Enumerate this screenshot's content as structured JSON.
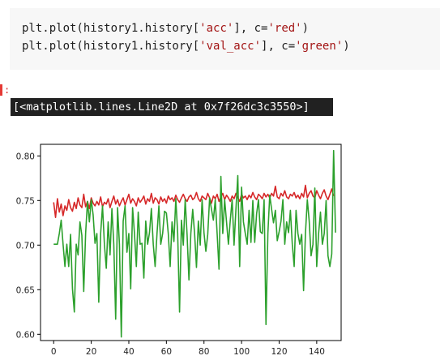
{
  "code": {
    "line1": {
      "prefix": "plt.plot(history1.history[",
      "key": "'acc'",
      "mid": "], c=",
      "color": "'red'",
      "suffix": ")"
    },
    "line2": {
      "prefix": "plt.plot(history1.history[",
      "key": "'val_acc'",
      "mid": "], c=",
      "color": "'green'",
      "suffix": ")"
    }
  },
  "prompt_mark": ":",
  "output_text": "[<matplotlib.lines.Line2D at 0x7f26dc3c3550>]",
  "chart_data": {
    "type": "line",
    "xlim": [
      -7,
      153
    ],
    "ylim": [
      0.593,
      0.813
    ],
    "x_ticks": [
      0,
      20,
      40,
      60,
      80,
      100,
      120,
      140
    ],
    "y_ticks": [
      0.6,
      0.65,
      0.7,
      0.75,
      0.8
    ],
    "x_tick_labels": [
      "0",
      "20",
      "40",
      "60",
      "80",
      "100",
      "120",
      "140"
    ],
    "y_tick_labels": [
      "0.60",
      "0.65",
      "0.70",
      "0.75",
      "0.80"
    ],
    "grid": false,
    "series": [
      {
        "key": "acc",
        "color": "#d62728",
        "values": [
          0.748,
          0.731,
          0.752,
          0.737,
          0.746,
          0.733,
          0.744,
          0.739,
          0.751,
          0.742,
          0.738,
          0.748,
          0.741,
          0.753,
          0.745,
          0.742,
          0.757,
          0.743,
          0.749,
          0.741,
          0.753,
          0.747,
          0.744,
          0.749,
          0.745,
          0.754,
          0.743,
          0.748,
          0.746,
          0.752,
          0.742,
          0.749,
          0.755,
          0.746,
          0.751,
          0.744,
          0.749,
          0.753,
          0.745,
          0.751,
          0.757,
          0.747,
          0.752,
          0.749,
          0.744,
          0.753,
          0.748,
          0.751,
          0.755,
          0.746,
          0.752,
          0.749,
          0.758,
          0.747,
          0.753,
          0.751,
          0.746,
          0.754,
          0.749,
          0.752,
          0.747,
          0.755,
          0.751,
          0.753,
          0.749,
          0.756,
          0.751,
          0.748,
          0.753,
          0.757,
          0.752,
          0.749,
          0.754,
          0.756,
          0.751,
          0.753,
          0.759,
          0.752,
          0.749,
          0.755,
          0.753,
          0.751,
          0.758,
          0.753,
          0.747,
          0.755,
          0.752,
          0.757,
          0.749,
          0.754,
          0.758,
          0.751,
          0.756,
          0.753,
          0.749,
          0.755,
          0.752,
          0.758,
          0.753,
          0.749,
          0.757,
          0.753,
          0.755,
          0.751,
          0.756,
          0.753,
          0.759,
          0.754,
          0.751,
          0.757,
          0.755,
          0.752,
          0.758,
          0.754,
          0.757,
          0.753,
          0.758,
          0.755,
          0.766,
          0.754,
          0.752,
          0.758,
          0.755,
          0.761,
          0.754,
          0.752,
          0.757,
          0.755,
          0.759,
          0.753,
          0.756,
          0.752,
          0.758,
          0.754,
          0.767,
          0.753,
          0.758,
          0.761,
          0.755,
          0.753,
          0.761,
          0.756,
          0.752,
          0.758,
          0.762,
          0.755,
          0.751,
          0.757,
          0.763,
          0.755
        ]
      },
      {
        "key": "val_acc",
        "color": "#2ca02c",
        "values": [
          0.701,
          0.701,
          0.701,
          0.713,
          0.728,
          0.701,
          0.676,
          0.701,
          0.676,
          0.712,
          0.651,
          0.625,
          0.701,
          0.689,
          0.726,
          0.711,
          0.648,
          0.713,
          0.749,
          0.726,
          0.751,
          0.734,
          0.702,
          0.713,
          0.636,
          0.713,
          0.744,
          0.701,
          0.674,
          0.726,
          0.689,
          0.741,
          0.701,
          0.617,
          0.742,
          0.701,
          0.597,
          0.727,
          0.744,
          0.692,
          0.713,
          0.651,
          0.742,
          0.713,
          0.676,
          0.737,
          0.701,
          0.702,
          0.663,
          0.727,
          0.701,
          0.714,
          0.741,
          0.701,
          0.676,
          0.713,
          0.744,
          0.701,
          0.713,
          0.738,
          0.736,
          0.713,
          0.676,
          0.726,
          0.704,
          0.752,
          0.713,
          0.625,
          0.728,
          0.7,
          0.751,
          0.712,
          0.661,
          0.713,
          0.74,
          0.713,
          0.675,
          0.727,
          0.7,
          0.751,
          0.714,
          0.693,
          0.712,
          0.753,
          0.74,
          0.728,
          0.751,
          0.713,
          0.673,
          0.777,
          0.713,
          0.751,
          0.726,
          0.701,
          0.728,
          0.751,
          0.7,
          0.74,
          0.778,
          0.676,
          0.765,
          0.726,
          0.713,
          0.701,
          0.739,
          0.703,
          0.75,
          0.703,
          0.735,
          0.751,
          0.715,
          0.713,
          0.751,
          0.611,
          0.713,
          0.756,
          0.74,
          0.725,
          0.739,
          0.705,
          0.715,
          0.727,
          0.751,
          0.701,
          0.726,
          0.714,
          0.739,
          0.701,
          0.676,
          0.739,
          0.713,
          0.701,
          0.712,
          0.649,
          0.713,
          0.751,
          0.727,
          0.688,
          0.701,
          0.764,
          0.676,
          0.713,
          0.737,
          0.701,
          0.713,
          0.75,
          0.688,
          0.676,
          0.69,
          0.806,
          0.714
        ]
      }
    ]
  }
}
